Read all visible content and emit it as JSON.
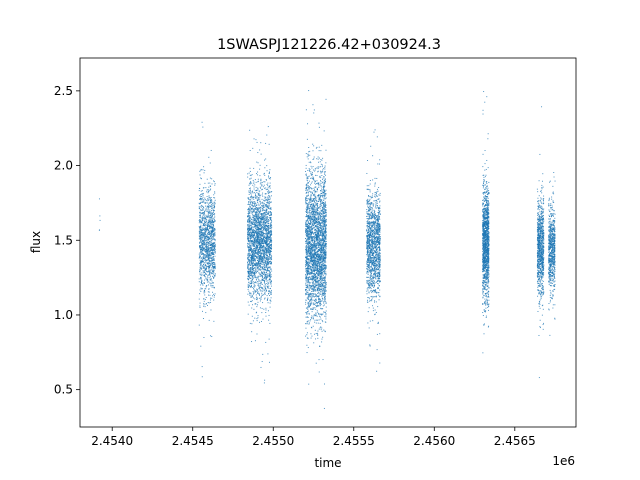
{
  "chart_data": {
    "type": "scatter",
    "title": "1SWASPJ121226.42+030924.3",
    "xlabel": "time",
    "ylabel": "flux",
    "x_offset_label": "1e6",
    "xlim": [
      2453800,
      2456880
    ],
    "ylim": [
      0.25,
      2.72
    ],
    "grid": false,
    "point_color": "#1f77b4",
    "x_ticks": [
      2454000,
      2454500,
      2455000,
      2455500,
      2456000,
      2456500
    ],
    "x_tick_labels": [
      "2.4540",
      "2.4545",
      "2.4550",
      "2.4555",
      "2.4560",
      "2.4565"
    ],
    "y_ticks": [
      0.5,
      1.0,
      1.5,
      2.0,
      2.5
    ],
    "y_tick_labels": [
      "0.5",
      "1.0",
      "1.5",
      "2.0",
      "2.5"
    ],
    "observing_seasons": [
      {
        "x_start": 2453920,
        "x_end": 2453925,
        "flux_center": 1.62,
        "flux_spread": 0.14,
        "flux_min": 1.52,
        "flux_max": 1.93,
        "points": 6
      },
      {
        "x_start": 2454540,
        "x_end": 2454640,
        "flux_center": 1.5,
        "flux_spread": 0.17,
        "flux_min": 0.38,
        "flux_max": 2.42,
        "points": 1300
      },
      {
        "x_start": 2454840,
        "x_end": 2454990,
        "flux_center": 1.49,
        "flux_spread": 0.19,
        "flux_min": 0.42,
        "flux_max": 2.55,
        "points": 2600
      },
      {
        "x_start": 2455200,
        "x_end": 2455330,
        "flux_center": 1.46,
        "flux_spread": 0.24,
        "flux_min": 0.37,
        "flux_max": 2.59,
        "points": 3000
      },
      {
        "x_start": 2455580,
        "x_end": 2455665,
        "flux_center": 1.47,
        "flux_spread": 0.17,
        "flux_min": 0.42,
        "flux_max": 2.49,
        "points": 1400
      },
      {
        "x_start": 2456300,
        "x_end": 2456340,
        "flux_center": 1.48,
        "flux_spread": 0.18,
        "flux_min": 0.41,
        "flux_max": 2.58,
        "points": 1400
      },
      {
        "x_start": 2456640,
        "x_end": 2456680,
        "flux_center": 1.45,
        "flux_spread": 0.16,
        "flux_min": 0.42,
        "flux_max": 2.55,
        "points": 900
      },
      {
        "x_start": 2456710,
        "x_end": 2456750,
        "flux_center": 1.44,
        "flux_spread": 0.15,
        "flux_min": 0.85,
        "flux_max": 1.97,
        "points": 700
      }
    ]
  }
}
